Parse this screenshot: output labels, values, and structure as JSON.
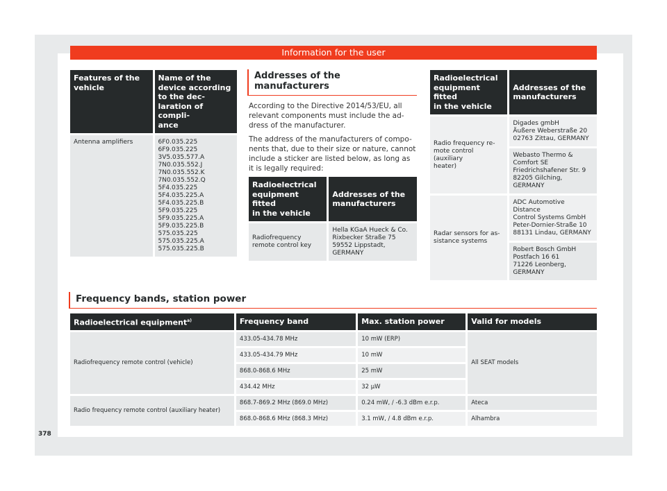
{
  "header": {
    "title": "Information for the user"
  },
  "table_antenna": {
    "headers": [
      "Features of the vehicle",
      "Name of the device according to the dec-\nlaration of compli-\nance"
    ],
    "rows": [
      {
        "feature": "Antenna amplifiers",
        "devices": "6F0.035.225\n6F9.035.225\n3V5.035.577.A\n7N0.035.552.J\n7N0.035.552.K\n7N0.035.552.Q\n5F4.035.225\n5F4.035.225.A\n5F4.035.225.B\n5F9.035.225\n5F9.035.225.A\n5F9.035.225.B\n575.035.225\n575.035.225.A\n575.035.225.B"
      }
    ]
  },
  "addresses_section": {
    "title": "Addresses of the manufacturers",
    "para1": "According to the Directive 2014/53/EU, all relevant components must include the ad-dress of the manufacturer.",
    "para2": "The address of the manufacturers of compo-nents that, due to their size or nature, cannot include a sticker are listed below, as long as it is legally required:",
    "table": {
      "headers": [
        "Radioelectrical\nequipment fitted\nin the vehicle",
        "Addresses of the\nmanufacturers"
      ],
      "rows": [
        {
          "equipment": "Radiofrequency remote control key",
          "address": "Hella KGaA Hueck & Co.\nRixbecker Straße 75\n59552 Lippstadt,\nGERMANY"
        }
      ]
    }
  },
  "table_right": {
    "headers": [
      "Radioelectrical\nequipment fitted\nin the vehicle",
      "Addresses of the\nmanufacturers"
    ],
    "groups": [
      {
        "equipment": "Radio frequency re-\nmote control (auxiliary\nheater)",
        "addresses": [
          "Digades gmbH\nÄußere Weberstraße 20\n02763 Zittau, GERMANY",
          "Webasto Thermo &\nComfort SE\nFriedrichshafener Str. 9\n82205 Gilching, GERMANY"
        ]
      },
      {
        "equipment": "Radar sensors for as-\nsistance systems",
        "addresses": [
          "ADC Automotive Distance\nControl Systems GmbH\nPeter-Dornier-Straße 10\n88131 Lindau, GERMANY",
          "Robert Bosch GmbH\nPostfach 16 61\n71226 Leonberg,\nGERMANY"
        ]
      }
    ]
  },
  "frequency_section": {
    "title": "Frequency bands, station power",
    "headers": [
      "Radioelectrical equipment",
      "Frequency band",
      "Max. station power",
      "Valid for models"
    ],
    "footnote_mark": "a)",
    "groups": [
      {
        "equipment": "Radiofrequency remote control (vehicle)",
        "models": "All SEAT models",
        "rows": [
          {
            "band": "433.05-434.78 MHz",
            "power": "10 mW (ERP)"
          },
          {
            "band": "433.05-434.79 MHz",
            "power": "10 mW"
          },
          {
            "band": "868.0-868.6 MHz",
            "power": "25 mW"
          },
          {
            "band": "434.42 MHz",
            "power": "32 µW"
          }
        ]
      },
      {
        "equipment": "Radio frequency remote control (auxiliary heater)",
        "rows": [
          {
            "band": "868.7-869.2 MHz (869.0 MHz)",
            "power": "0.24 mW, / -6.3 dBm e.r.p.",
            "model": "Ateca"
          },
          {
            "band": "868.0-868.6 MHz (868.3 MHz)",
            "power": "3.1 mW, / 4.8 dBm e.r.p.",
            "model": "Alhambra"
          }
        ]
      }
    ]
  },
  "page_number": "378"
}
